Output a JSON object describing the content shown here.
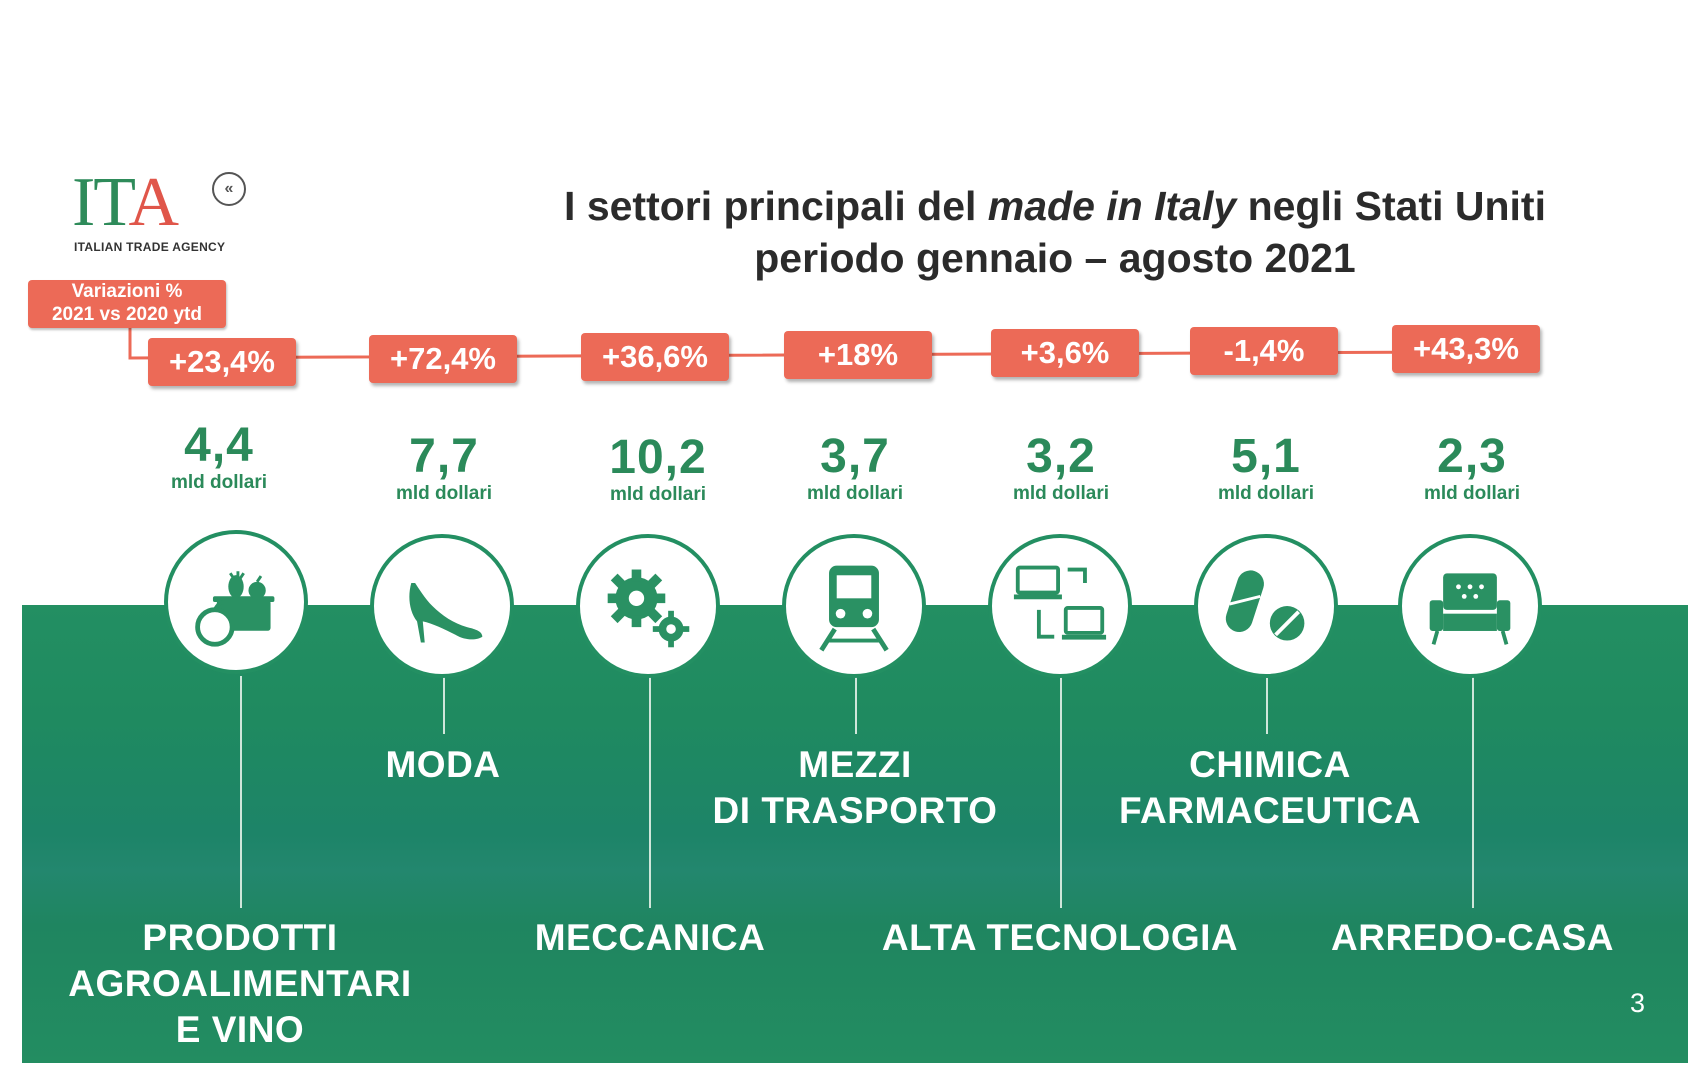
{
  "logo": {
    "mark_green": "IT",
    "mark_red": "A",
    "subtitle": "ITALIAN TRADE AGENCY"
  },
  "title": {
    "line1_pre": "I settori principali del ",
    "line1_em": "made in Italy",
    "line1_post": " negli Stati Uniti",
    "line2": "periodo gennaio – agosto 2021"
  },
  "legend": {
    "line1": "Variazioni %",
    "line2": "2021 vs 2020 ytd"
  },
  "unit_label": "mld dollari",
  "sectors": [
    {
      "pct": "+23,4%",
      "value": "4,4",
      "unit": "mld dollari",
      "label": "PRODOTTI\nAGROALIMENTARI\nE VINO",
      "icon": "food-basket-icon"
    },
    {
      "pct": "+72,4%",
      "value": "7,7",
      "unit": "mld dollari",
      "label": "MODA",
      "icon": "high-heel-icon"
    },
    {
      "pct": "+36,6%",
      "value": "10,2",
      "unit": "mld dollari",
      "label": "MECCANICA",
      "icon": "gears-icon"
    },
    {
      "pct": "+18%",
      "value": "3,7",
      "unit": "mld dollari",
      "label": "MEZZI\nDI TRASPORTO",
      "icon": "train-icon"
    },
    {
      "pct": "+3,6%",
      "value": "3,2",
      "unit": "mld dollari",
      "label": "ALTA TECNOLOGIA",
      "icon": "computers-icon"
    },
    {
      "pct": "-1,4%",
      "value": "5,1",
      "unit": "mld dollari",
      "label": "CHIMICA\nFARMACEUTICA",
      "icon": "pills-icon"
    },
    {
      "pct": "+43,3%",
      "value": "2,3",
      "unit": "mld dollari",
      "label": "ARREDO-CASA",
      "icon": "armchair-icon"
    }
  ],
  "page_number": "3",
  "colors": {
    "green": "#238f62",
    "badge": "#ec6a57",
    "text_dark": "#2b2b2b"
  }
}
